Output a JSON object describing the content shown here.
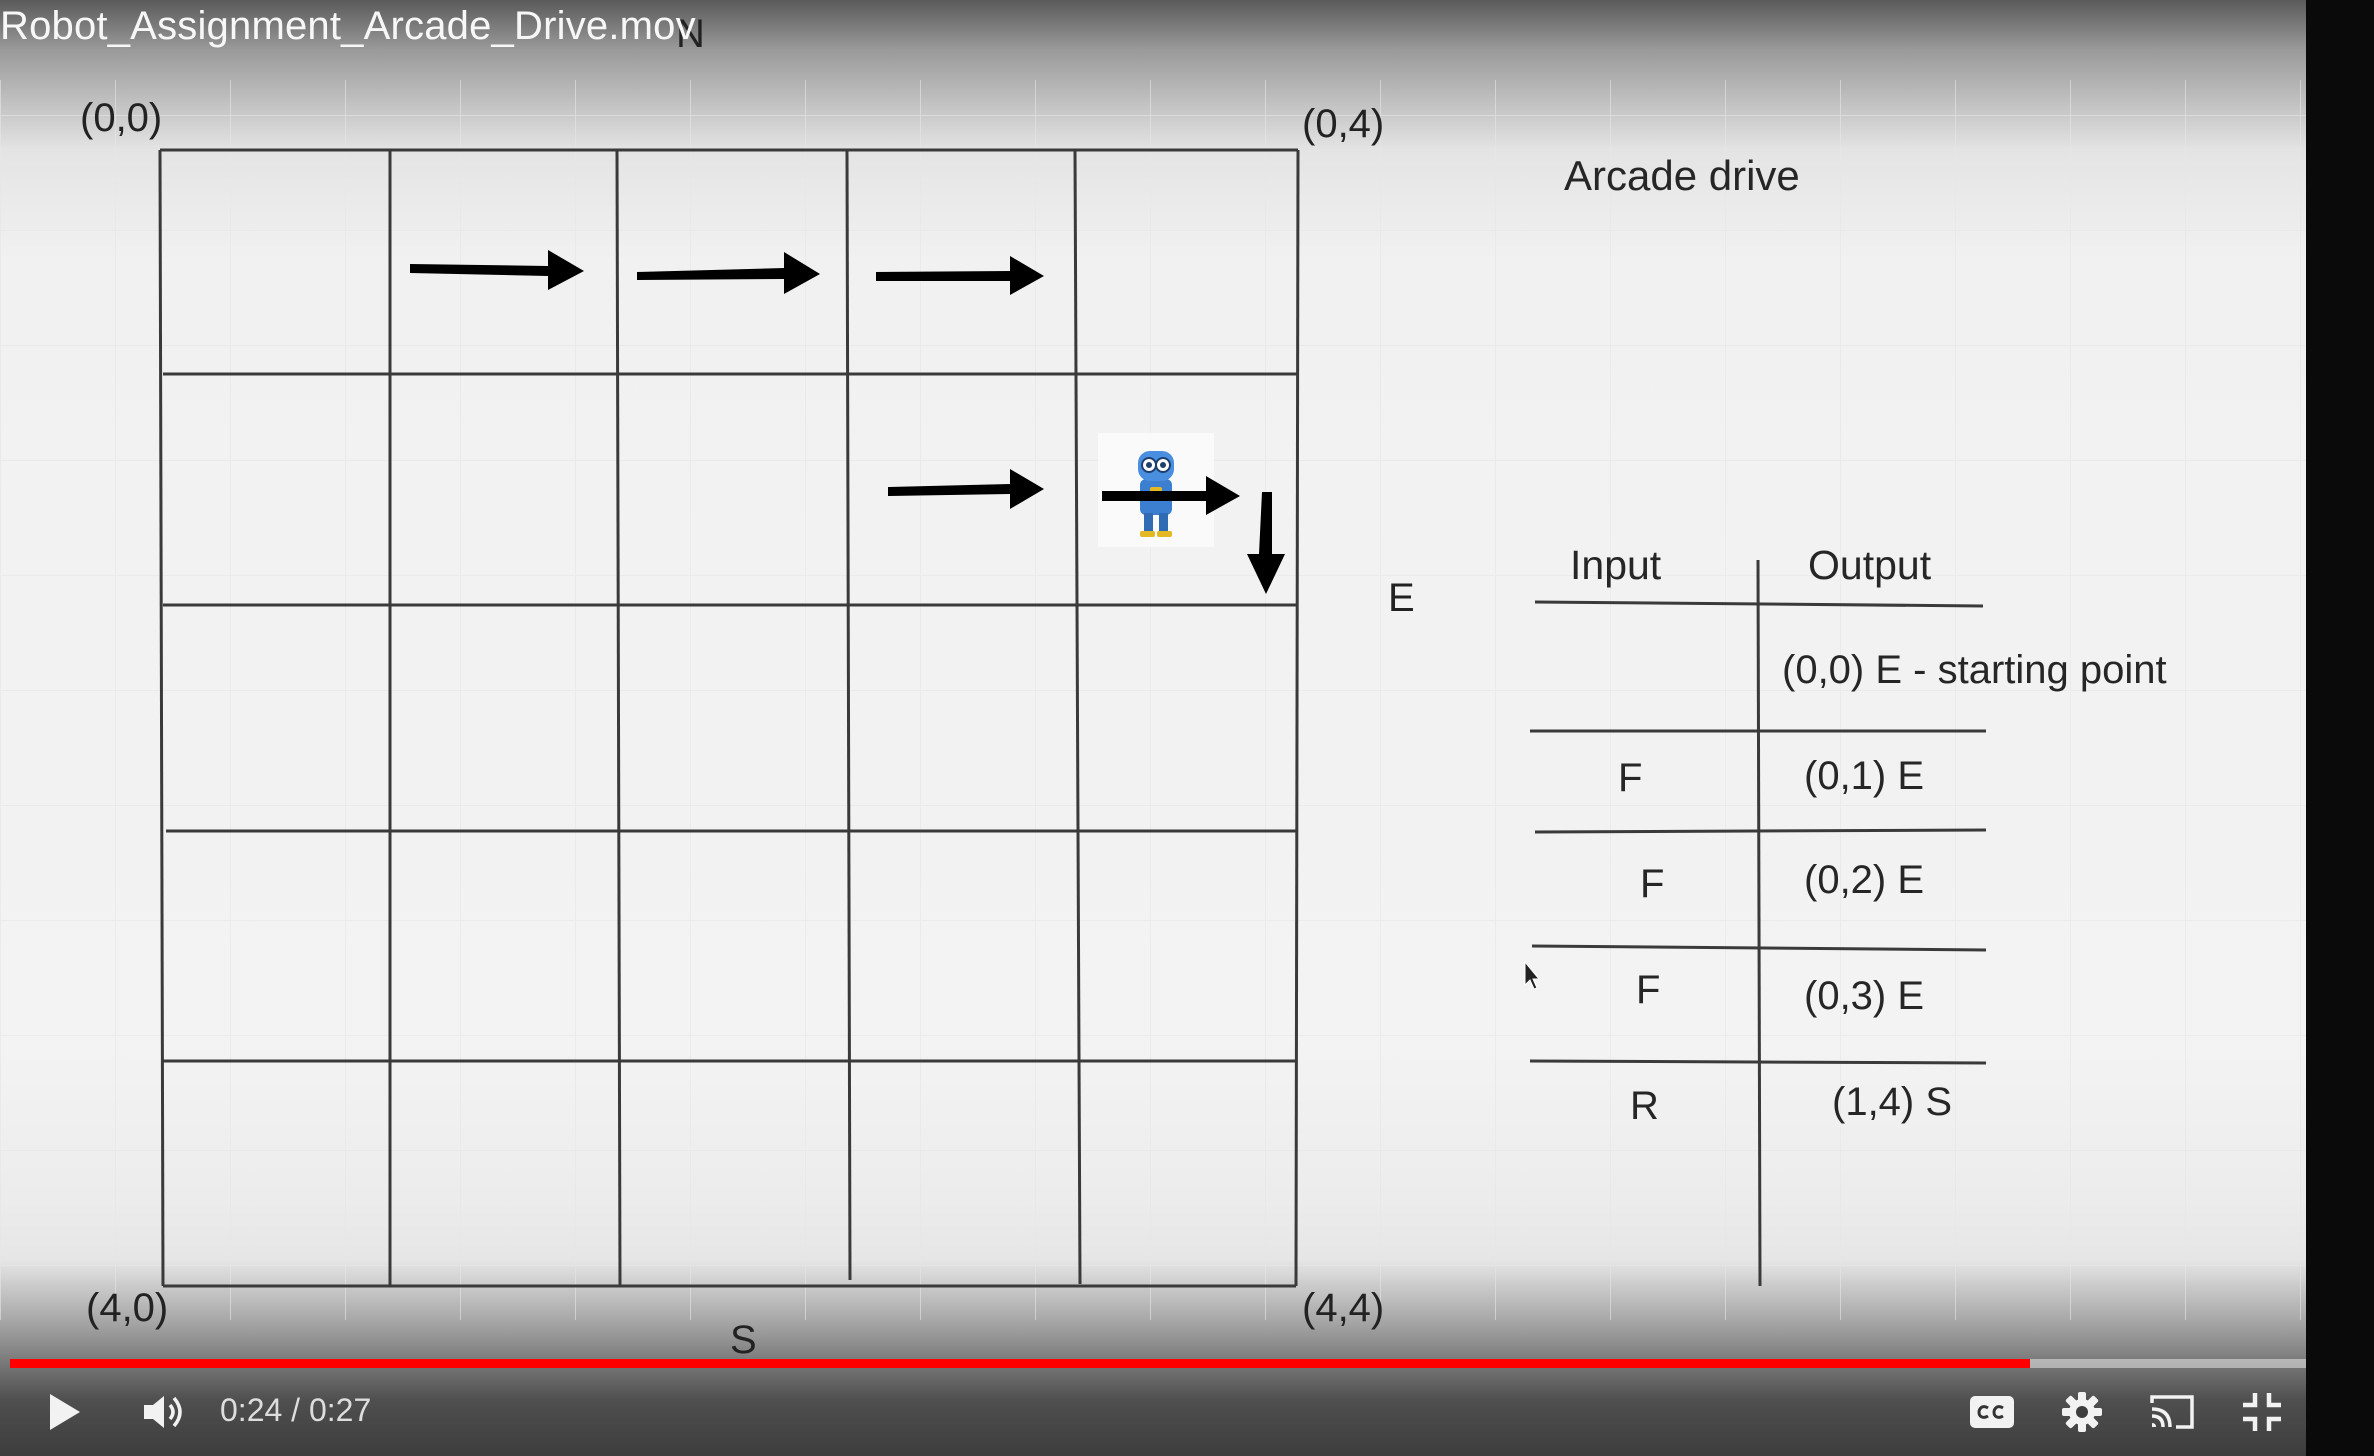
{
  "video": {
    "title": "Robot_Assignment_Arcade_Drive.mov"
  },
  "slide": {
    "top_mark": "N",
    "bottom_mark": "S",
    "side_mark": "E",
    "corners": {
      "top_left": "(0,0)",
      "top_right": "(0,4)",
      "bottom_left": "(4,0)",
      "bottom_right": "(4,4)"
    },
    "heading": "Arcade drive",
    "table": {
      "col_input": "Input",
      "col_output": "Output",
      "rows": [
        {
          "input": "",
          "output": "(0,0) E  - starting point"
        },
        {
          "input": "F",
          "output": "(0,1) E"
        },
        {
          "input": "F",
          "output": "(0,2) E"
        },
        {
          "input": "F",
          "output": "(0,3) E"
        },
        {
          "input": "R",
          "output": "(1,4) S"
        }
      ]
    }
  },
  "controls": {
    "current_time": "0:24",
    "separator": " / ",
    "duration": "0:27",
    "progress_fraction": 0.88,
    "accent_color": "#ff0000",
    "icons": [
      "play-icon",
      "volume-icon",
      "captions-icon",
      "settings-icon",
      "cast-icon",
      "exit-fullscreen-icon"
    ]
  }
}
